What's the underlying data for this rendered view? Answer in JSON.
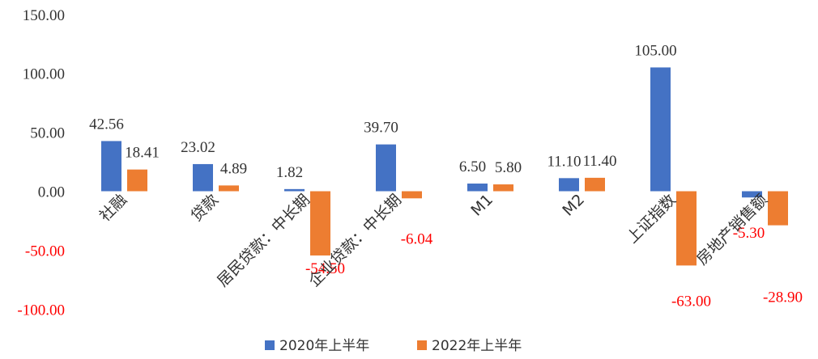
{
  "chart_data": {
    "type": "bar",
    "categories": [
      "社融",
      "贷款",
      "居民贷款：中长期",
      "企业贷款：中长期",
      "M1",
      "M2",
      "上证指数",
      "房地产销售额"
    ],
    "series": [
      {
        "name": "2020年上半年",
        "color": "#4472C4",
        "values": [
          42.56,
          23.02,
          1.82,
          39.7,
          6.5,
          11.1,
          105.0,
          -5.3
        ]
      },
      {
        "name": "2022年上半年",
        "color": "#ED7D31",
        "values": [
          18.41,
          4.89,
          -54.5,
          -6.04,
          5.8,
          11.4,
          -63.0,
          -28.9
        ]
      }
    ],
    "data_labels": [
      [
        "42.56",
        "23.02",
        "1.82",
        "39.70",
        "6.50",
        "11.10",
        "105.00",
        "-5.30"
      ],
      [
        "18.41",
        "4.89",
        "-54.50",
        "-6.04",
        "5.80",
        "11.40",
        "-63.00",
        "-28.90"
      ]
    ],
    "yticks": [
      "150.00",
      "100.00",
      "50.00",
      "0.00",
      "-50.00",
      "-100.00"
    ],
    "ylim": [
      -100,
      150
    ],
    "grid": false,
    "legend_position": "bottom",
    "positive_label_color": "#333333",
    "negative_label_color": "#FF0000"
  }
}
